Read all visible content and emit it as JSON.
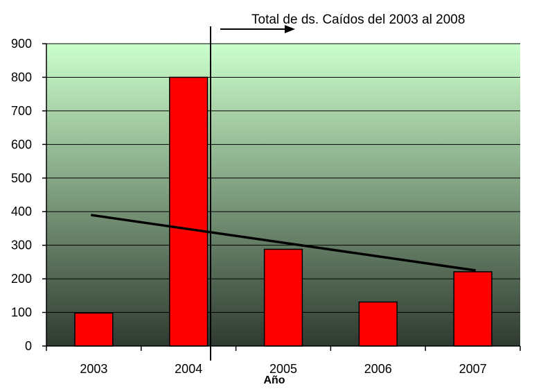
{
  "chart_data": {
    "type": "bar",
    "title": "",
    "xlabel": "Año",
    "ylabel": "",
    "categories": [
      "2003",
      "2004",
      "2005",
      "2006",
      "2007"
    ],
    "series": [
      {
        "values": [
          98,
          800,
          288,
          131,
          221
        ],
        "color": "#ff0000"
      }
    ],
    "trendline": {
      "type": "linear",
      "start_value": 390,
      "end_value": 225,
      "color": "#000000"
    },
    "annotation": {
      "text": "Total de ds. Caídos del 2003 al 2008"
    },
    "yticks": [
      "0",
      "100",
      "200",
      "300",
      "400",
      "500",
      "600",
      "700",
      "800",
      "900"
    ],
    "ylim": [
      0,
      900
    ],
    "grid": true,
    "legend": "none",
    "background_gradient": [
      "#ccffcc",
      "#2f3a30"
    ]
  }
}
